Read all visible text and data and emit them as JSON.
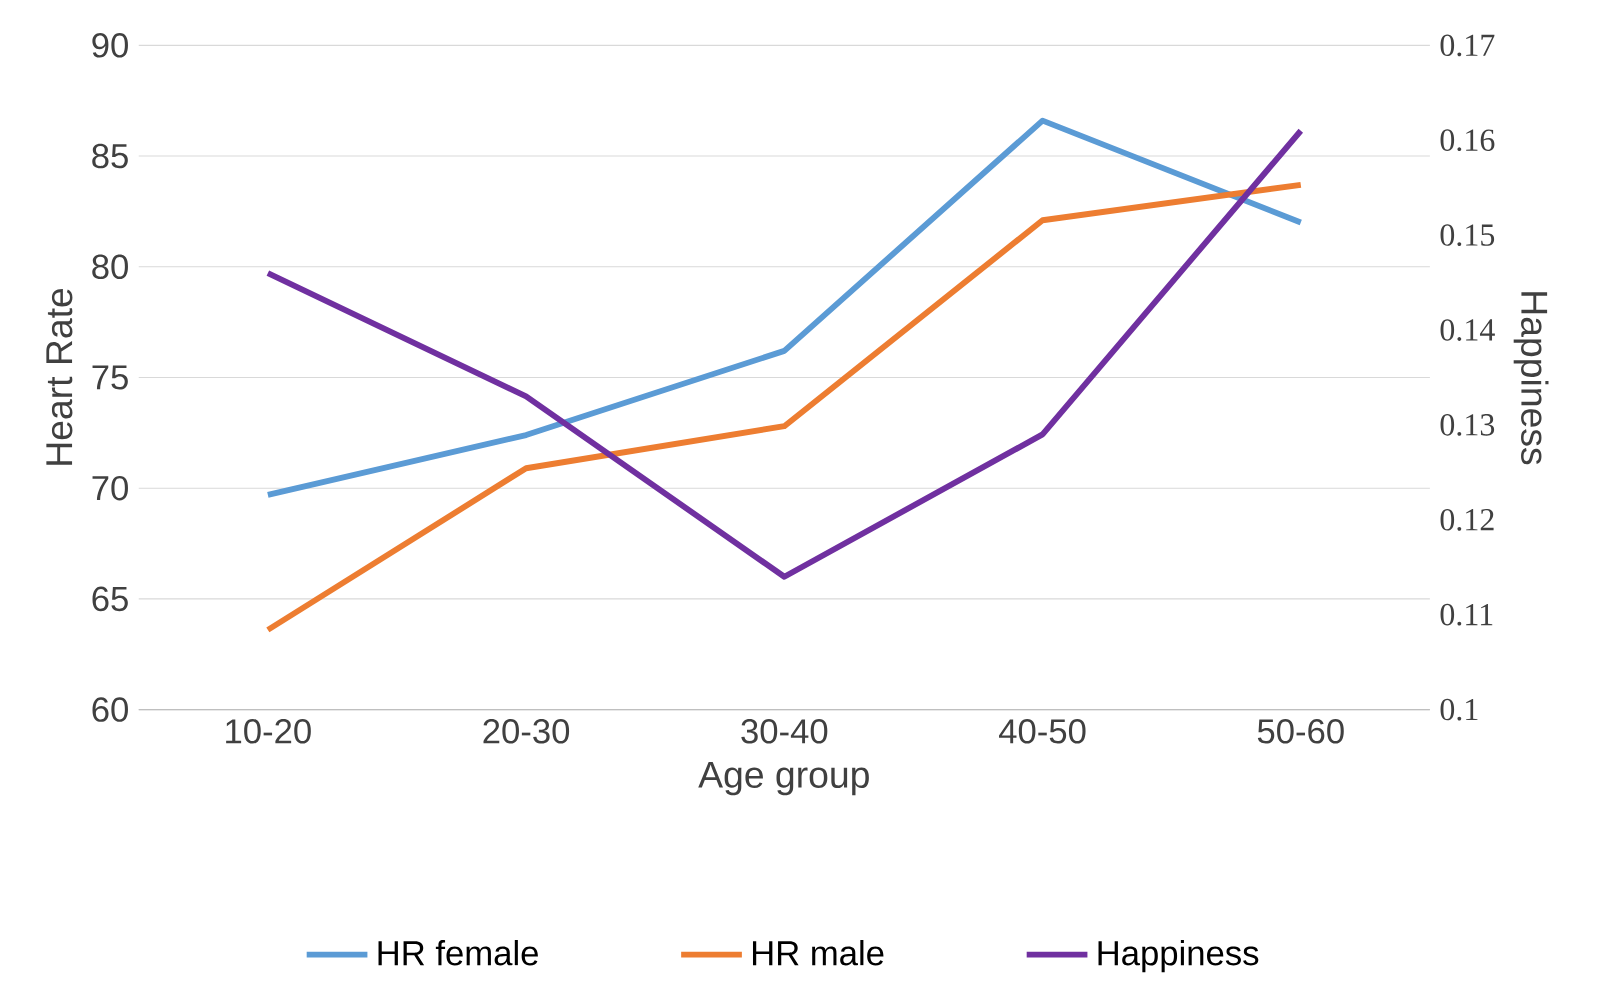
{
  "chart_data": {
    "type": "line",
    "xlabel": "Age group",
    "ylabel": "Heart Rate",
    "y2label": "Happiness",
    "categories": [
      "10-20",
      "20-30",
      "30-40",
      "40-50",
      "50-60"
    ],
    "series": [
      {
        "name": "HR female",
        "color": "#5b9bd5",
        "values": [
          69.7,
          72.4,
          76.2,
          86.6,
          82.0
        ]
      },
      {
        "name": "HR male",
        "color": "#ed7d31",
        "values": [
          63.6,
          70.9,
          72.8,
          82.1,
          83.7
        ]
      },
      {
        "name": "Happiness",
        "color": "#7030a0",
        "axis": "y2",
        "values": [
          0.146,
          0.133,
          0.114,
          0.129,
          0.161
        ]
      }
    ],
    "ylim": [
      60,
      90
    ],
    "yticks": [
      60,
      65,
      70,
      75,
      80,
      85,
      90
    ],
    "y2lim": [
      0.1,
      0.17
    ],
    "y2ticks": [
      0.1,
      0.11,
      0.12,
      0.13,
      0.14,
      0.15,
      0.16,
      0.17
    ],
    "grid": "y",
    "legend": "bottom",
    "marker": "none",
    "line_style": "solid"
  }
}
